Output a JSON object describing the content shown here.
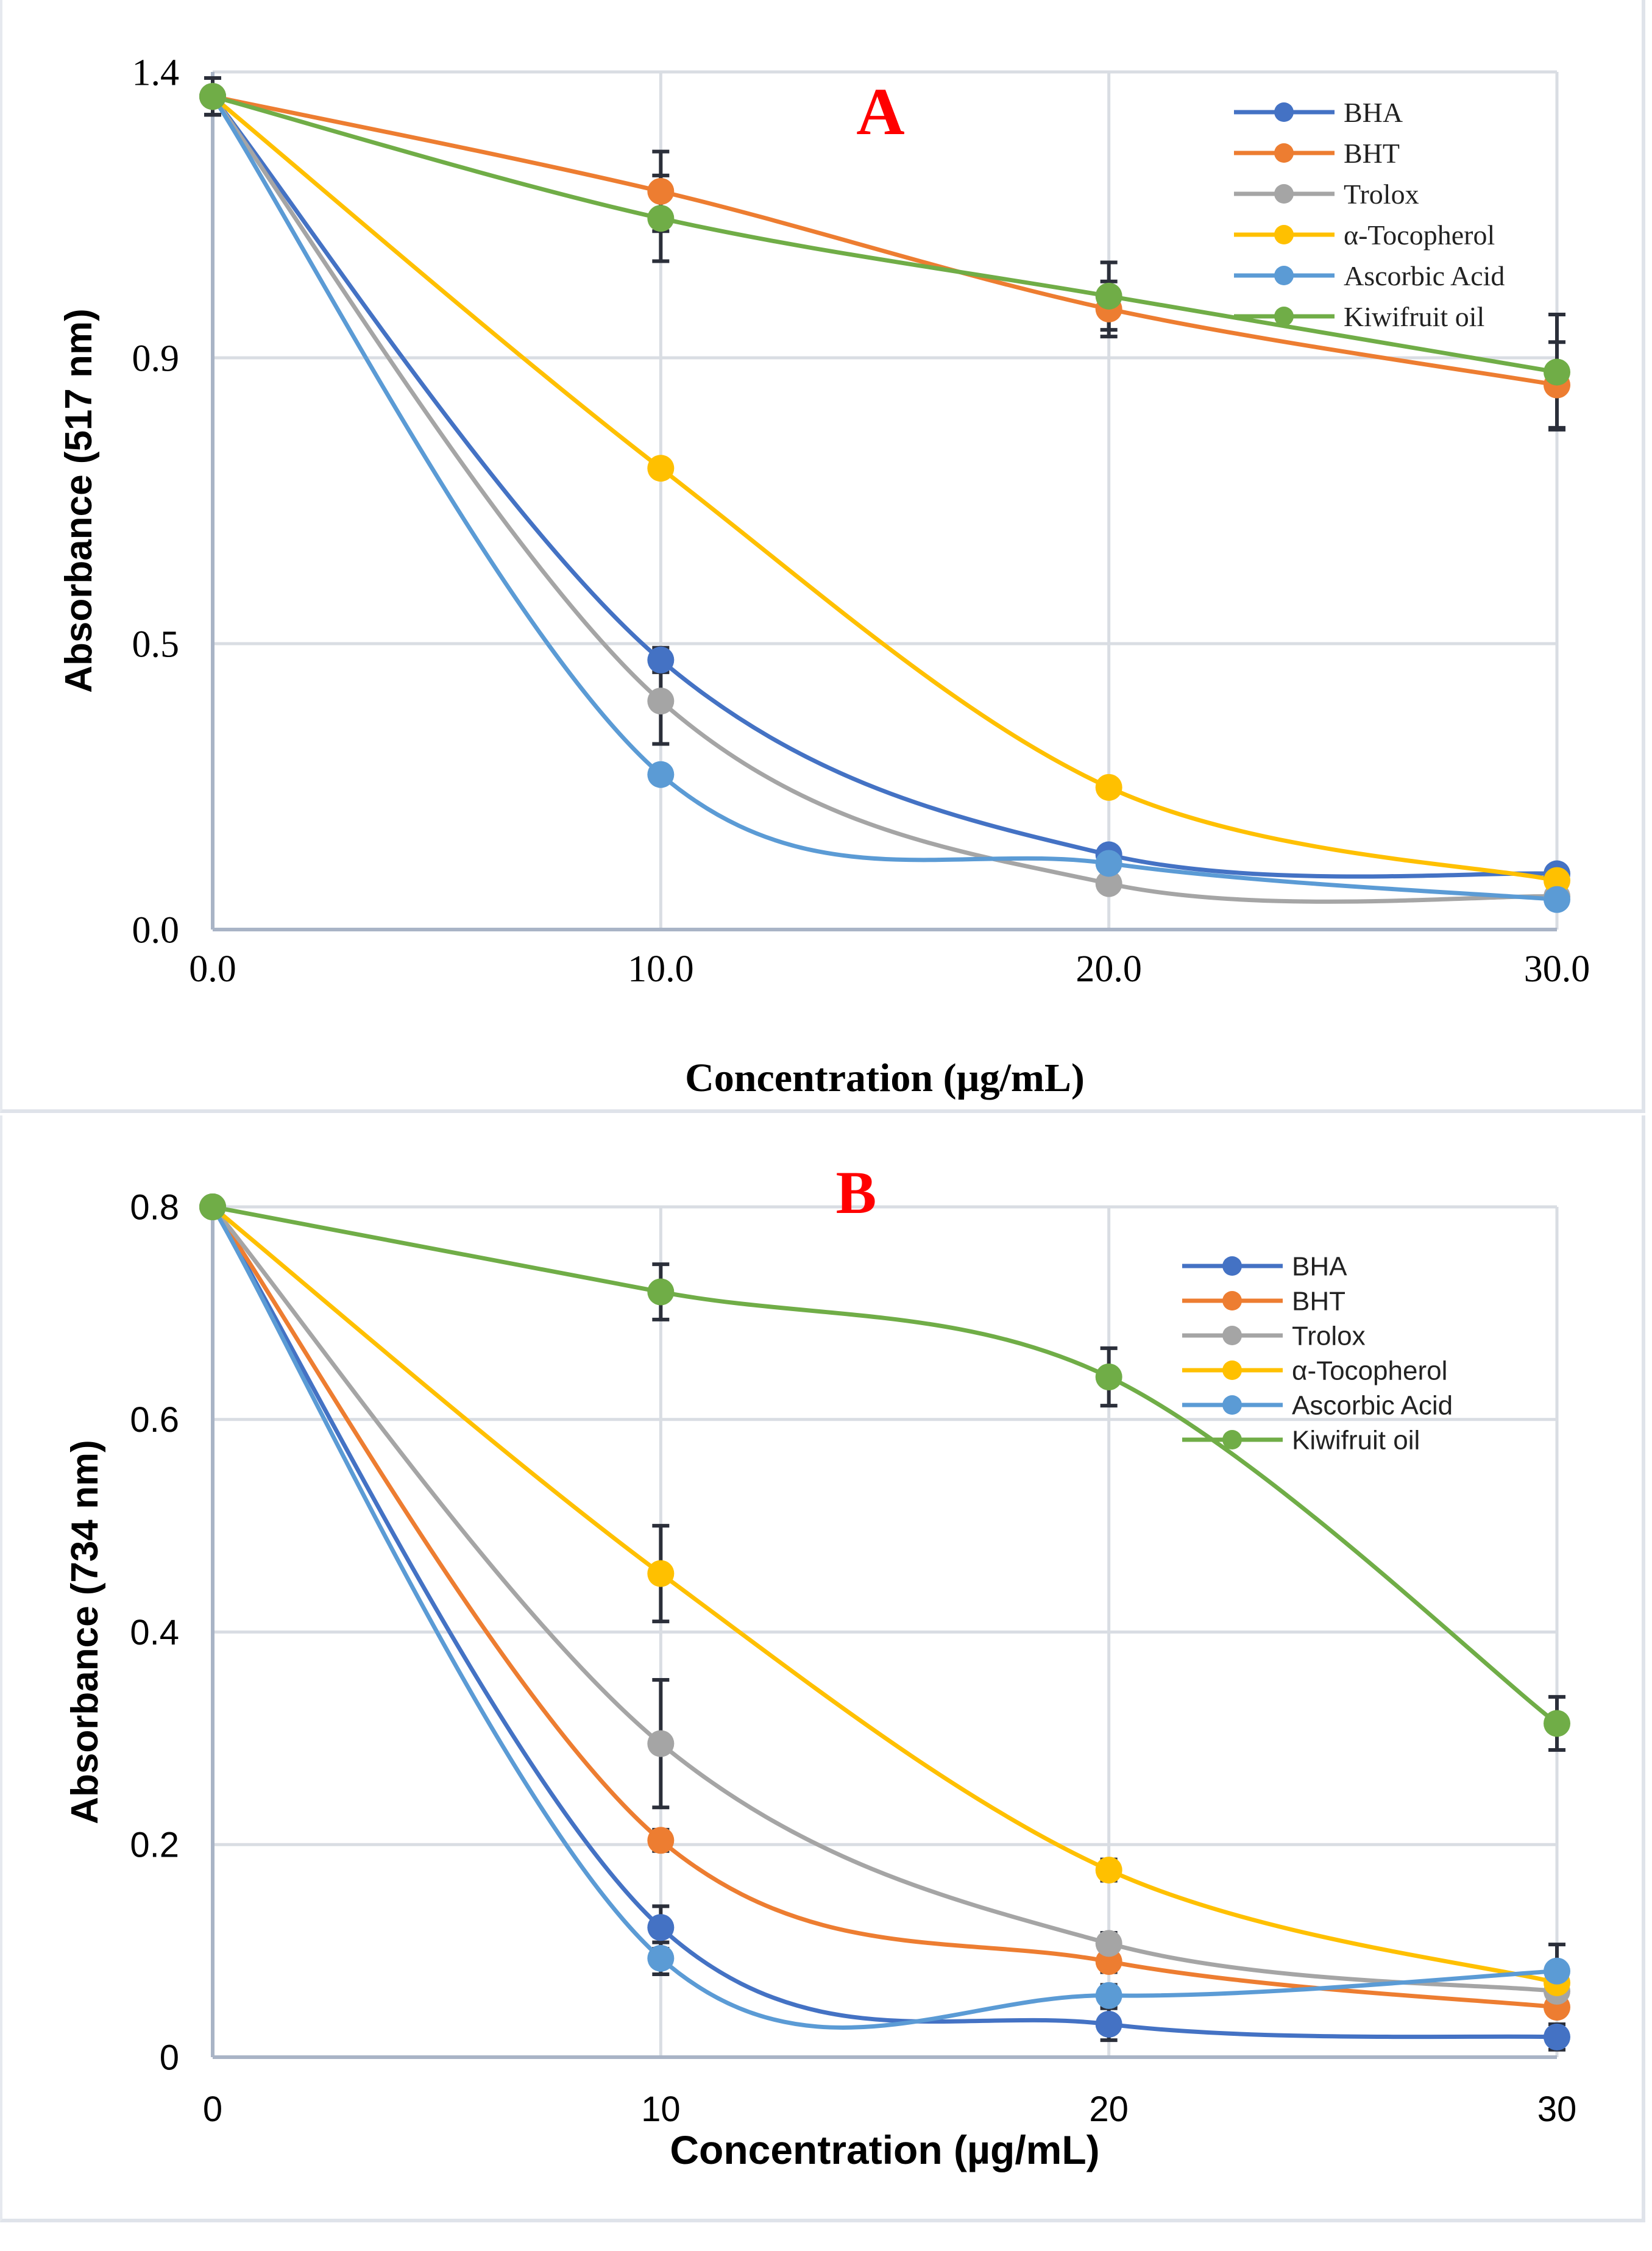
{
  "chart_data": [
    {
      "type": "line",
      "panel_label": "A",
      "title": "",
      "xlabel": "Concentration (µg/mL)",
      "ylabel": "Absorbance (517 nm)",
      "x": [
        0,
        10,
        20,
        30
      ],
      "x_tick_labels": [
        "0.0",
        "10.0",
        "20.0",
        "30.0"
      ],
      "xlim": [
        0,
        30
      ],
      "ylim": [
        0,
        1.4
      ],
      "y_ticks": [
        0,
        0.4667,
        0.9333,
        1.4
      ],
      "y_tick_labels": [
        "0.0",
        "0.5",
        "0.9",
        "1.4"
      ],
      "grid": true,
      "legend_placement": "top-right",
      "series": [
        {
          "name": "BHA",
          "color": "#4472c4",
          "values": [
            1.36,
            0.44,
            0.122,
            0.091
          ],
          "errors": [
            0.03,
            0.02,
            0.01,
            0.01
          ]
        },
        {
          "name": "BHT",
          "color": "#ed7d31",
          "values": [
            1.36,
            1.205,
            1.013,
            0.889
          ],
          "errors": [
            0.03,
            0.065,
            0.045,
            0.07
          ]
        },
        {
          "name": "Trolox",
          "color": "#a5a5a5",
          "values": [
            1.36,
            0.373,
            0.075,
            0.054
          ],
          "errors": [
            0.03,
            0.07,
            0.01,
            0.01
          ]
        },
        {
          "name": "α-Tocopherol",
          "color": "#ffc000",
          "values": [
            1.36,
            0.753,
            0.232,
            0.08
          ],
          "errors": [
            0.03,
            0.01,
            0.01,
            0.01
          ]
        },
        {
          "name": "Ascorbic Acid",
          "color": "#5b9bd5",
          "values": [
            1.36,
            0.253,
            0.108,
            0.049
          ],
          "errors": [
            0.03,
            0.01,
            0.01,
            0.01
          ]
        },
        {
          "name": "Kiwifruit oil",
          "color": "#70ad47",
          "values": [
            1.36,
            1.161,
            1.034,
            0.91
          ],
          "errors": [
            0.03,
            0.07,
            0.055,
            0.094
          ]
        }
      ]
    },
    {
      "type": "line",
      "panel_label": "B",
      "title": "",
      "xlabel": "Concentration (µg/mL)",
      "ylabel": "Absorbance (734 nm)",
      "x": [
        0,
        10,
        20,
        30
      ],
      "x_tick_labels": [
        "0",
        "10",
        "20",
        "30"
      ],
      "xlim": [
        0,
        30
      ],
      "ylim": [
        0,
        0.8
      ],
      "y_ticks": [
        0,
        0.2,
        0.4,
        0.6,
        0.8
      ],
      "y_tick_labels": [
        "0",
        "0.2",
        "0.4",
        "0.6",
        "0.8"
      ],
      "grid": true,
      "legend_placement": "top-right",
      "series": [
        {
          "name": "BHA",
          "color": "#4472c4",
          "values": [
            0.8,
            0.122,
            0.031,
            0.019
          ],
          "errors": [
            0.005,
            0.02,
            0.015,
            0.012
          ]
        },
        {
          "name": "BHT",
          "color": "#ed7d31",
          "values": [
            0.8,
            0.204,
            0.09,
            0.047
          ],
          "errors": [
            0.005,
            0.01,
            0.01,
            0.008
          ]
        },
        {
          "name": "Trolox",
          "color": "#a5a5a5",
          "values": [
            0.8,
            0.295,
            0.107,
            0.062
          ],
          "errors": [
            0.005,
            0.06,
            0.01,
            0.008
          ]
        },
        {
          "name": "α-Tocopherol",
          "color": "#ffc000",
          "values": [
            0.8,
            0.455,
            0.176,
            0.07
          ],
          "errors": [
            0.005,
            0.045,
            0.01,
            0.01
          ]
        },
        {
          "name": "Ascorbic Acid",
          "color": "#5b9bd5",
          "values": [
            0.8,
            0.093,
            0.058,
            0.081
          ],
          "errors": [
            0.005,
            0.015,
            0.01,
            0.025
          ]
        },
        {
          "name": "Kiwifruit oil",
          "color": "#70ad47",
          "values": [
            0.8,
            0.72,
            0.64,
            0.314
          ],
          "errors": [
            0.005,
            0.026,
            0.027,
            0.025
          ]
        }
      ]
    }
  ]
}
